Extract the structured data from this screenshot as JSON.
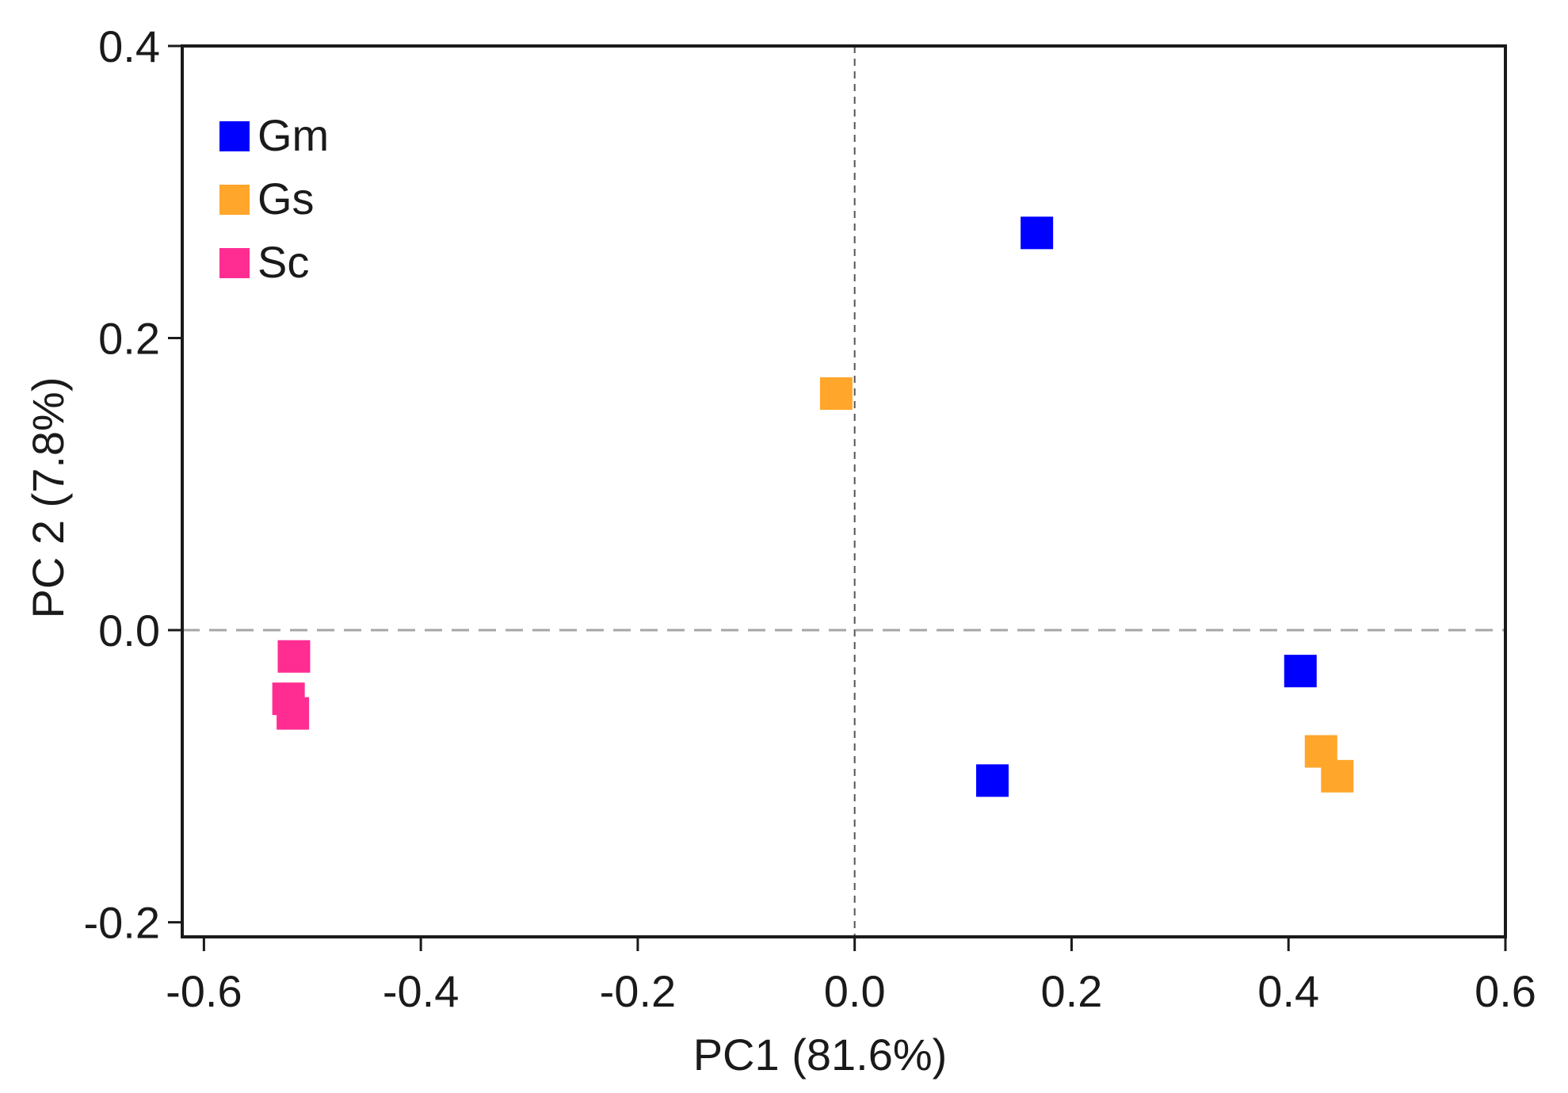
{
  "chart_data": {
    "type": "scatter",
    "title": "",
    "xlabel": "PC1 (81.6%)",
    "ylabel": "PC 2 (7.8%)",
    "xlim": [
      -0.62,
      0.6
    ],
    "ylim": [
      -0.21,
      0.4
    ],
    "x_ticks": [
      -0.6,
      -0.4,
      -0.2,
      0.0,
      0.2,
      0.4,
      0.6
    ],
    "x_tick_labels": [
      "-0.6",
      "-0.4",
      "-0.2",
      "0.0",
      "0.2",
      "0.4",
      "0.6"
    ],
    "y_ticks": [
      -0.2,
      0.0,
      0.2,
      0.4
    ],
    "y_tick_labels": [
      "-0.2",
      "0.0",
      "0.2",
      "0.4"
    ],
    "reference_lines": {
      "x": 0.0,
      "y": 0.0,
      "style": "dashed"
    },
    "grid": false,
    "legend_position": "top-left",
    "series": [
      {
        "name": "Gm",
        "color": "#0000ff",
        "marker": "square",
        "points": [
          {
            "x": 0.168,
            "y": 0.272
          },
          {
            "x": 0.127,
            "y": -0.103
          },
          {
            "x": 0.411,
            "y": -0.028
          }
        ]
      },
      {
        "name": "Gs",
        "color": "#ffa62b",
        "marker": "square",
        "points": [
          {
            "x": -0.017,
            "y": 0.162
          },
          {
            "x": 0.43,
            "y": -0.083
          },
          {
            "x": 0.445,
            "y": -0.1
          }
        ]
      },
      {
        "name": "Sc",
        "color": "#ff2d92",
        "marker": "square",
        "points": [
          {
            "x": -0.517,
            "y": -0.018
          },
          {
            "x": -0.522,
            "y": -0.047
          },
          {
            "x": -0.518,
            "y": -0.057
          }
        ]
      }
    ]
  }
}
